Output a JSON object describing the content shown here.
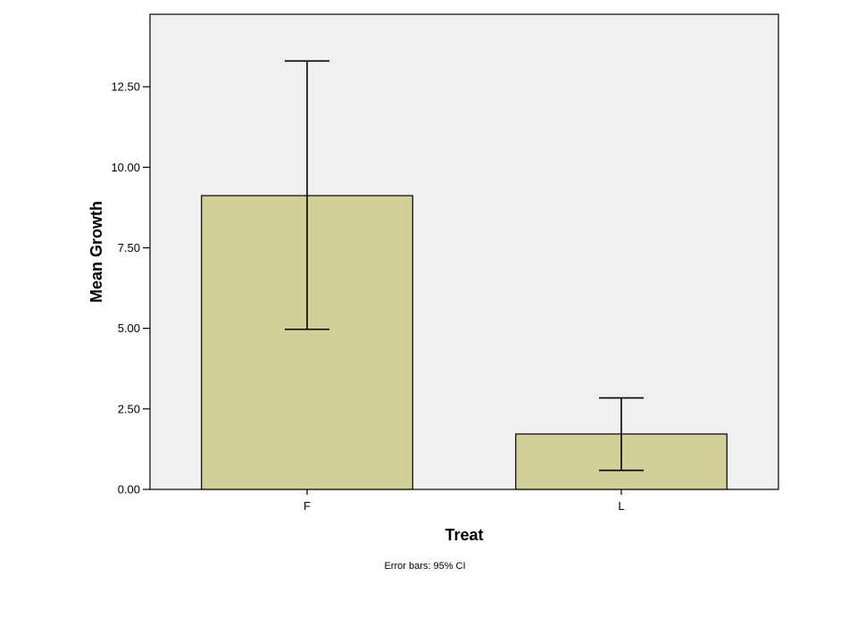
{
  "chart_data": {
    "type": "bar",
    "categories": [
      "F",
      "L"
    ],
    "values": [
      9.12,
      1.72
    ],
    "error_bars": [
      {
        "lower": 4.97,
        "upper": 13.3
      },
      {
        "lower": 0.59,
        "upper": 2.84
      }
    ],
    "xlabel": "Treat",
    "ylabel": "Mean Growth",
    "ylim": [
      0,
      14.75
    ],
    "yticks": [
      0,
      2.5,
      5,
      7.5,
      10,
      12.5
    ],
    "ytick_labels": [
      "0.00",
      "2.50",
      "5.00",
      "7.50",
      "10.00",
      "12.50"
    ],
    "footnote": "Error bars: 95% CI",
    "grid": false,
    "colors": {
      "bar_fill": "#d3cf98",
      "plot_background": "#f0f0f0",
      "axis": "#000000"
    }
  }
}
